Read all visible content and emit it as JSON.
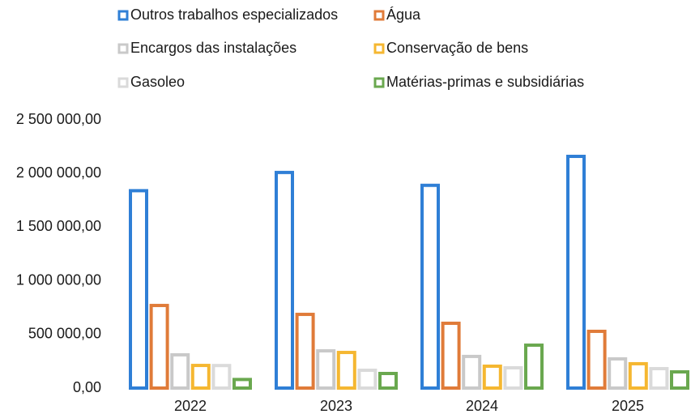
{
  "chart_data": {
    "type": "bar",
    "categories": [
      "2022",
      "2023",
      "2024",
      "2025"
    ],
    "series": [
      {
        "name": "Outros trabalhos especializados",
        "color": "#2f7fd6",
        "values": [
          1840000,
          2010000,
          1890000,
          2160000
        ]
      },
      {
        "name": "Água",
        "color": "#e07b39",
        "values": [
          770000,
          687000,
          604000,
          529000
        ]
      },
      {
        "name": "Encargos das instalações",
        "color": "#c9c9c9",
        "values": [
          310000,
          347000,
          295000,
          272000
        ]
      },
      {
        "name": "Conservação de bens",
        "color": "#f5b731",
        "values": [
          211000,
          332000,
          204000,
          227000
        ]
      },
      {
        "name": "Gasoleo",
        "color": "#dadada",
        "values": [
          210000,
          166000,
          189000,
          181000
        ]
      },
      {
        "name": "Matérias-primas e subsidiárias",
        "color": "#6aa84f",
        "values": [
          80000,
          136000,
          400000,
          151000
        ]
      }
    ],
    "ylim": [
      0,
      2500000
    ],
    "yticks": [
      {
        "value": 0,
        "label": "0,00"
      },
      {
        "value": 500000,
        "label": "500 000,00"
      },
      {
        "value": 1000000,
        "label": "1 000 000,00"
      },
      {
        "value": 1500000,
        "label": "1 500 000,00"
      },
      {
        "value": 2000000,
        "label": "2 000 000,00"
      },
      {
        "value": 2500000,
        "label": "2 500 000,00"
      }
    ],
    "grid": false
  }
}
